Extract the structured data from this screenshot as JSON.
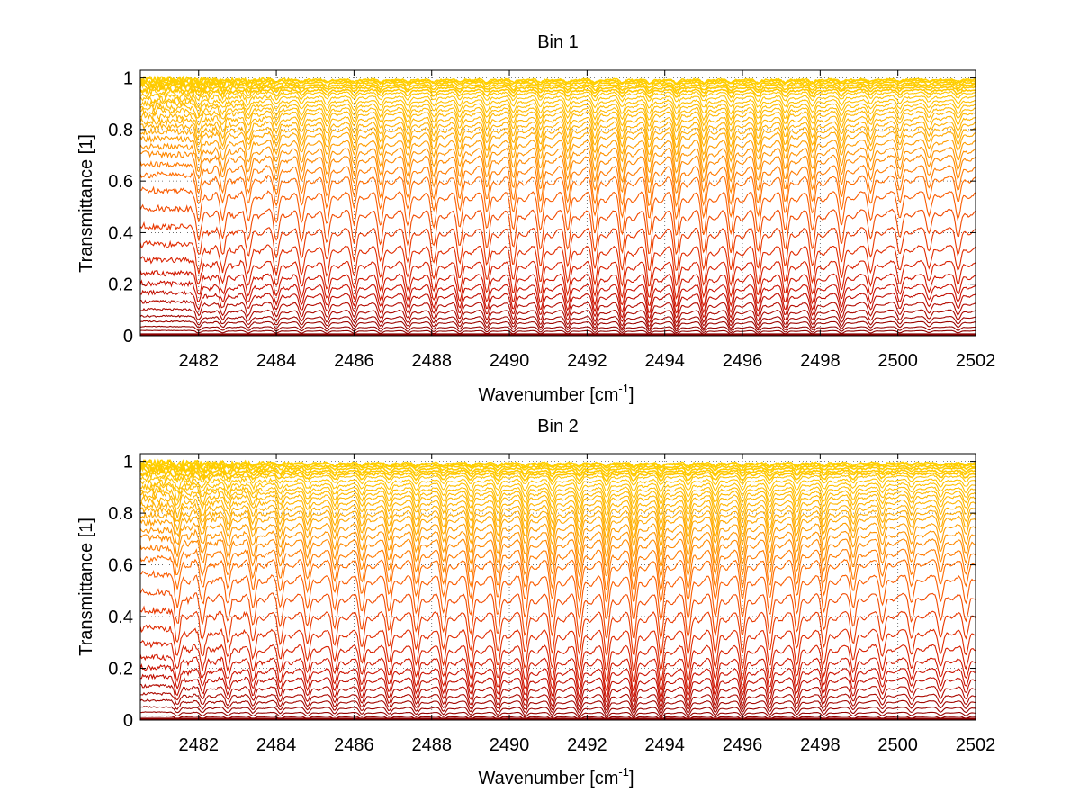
{
  "chart_data": [
    {
      "type": "line",
      "title": "Bin 1",
      "xlabel": "Wavenumber [cm",
      "xlabel_superscript": "-1",
      "xlabel_suffix": "]",
      "ylabel": "Transmittance [1]",
      "xlim": [
        2480.5,
        2502
      ],
      "ylim": [
        0,
        1.03
      ],
      "xticks": [
        2482,
        2484,
        2486,
        2488,
        2490,
        2492,
        2494,
        2496,
        2498,
        2500,
        2502
      ],
      "xtick_labels": [
        "2482",
        "2484",
        "2486",
        "2488",
        "2490",
        "2492",
        "2494",
        "2496",
        "2498",
        "2500",
        "2502"
      ],
      "yticks": [
        0,
        0.2,
        0.4,
        0.6,
        0.8,
        1
      ],
      "ytick_labels": [
        "0",
        "0.2",
        "0.4",
        "0.6",
        "0.8",
        "1"
      ],
      "grid": true,
      "grid_style": "dotted",
      "legend": "none",
      "colormap": [
        "#8b0000",
        "#cc1100",
        "#e63300",
        "#ff6600",
        "#ffaa00",
        "#ffd000"
      ],
      "series_baselines": [
        0.005,
        0.02,
        0.035,
        0.055,
        0.075,
        0.1,
        0.13,
        0.165,
        0.2,
        0.24,
        0.29,
        0.35,
        0.42,
        0.49,
        0.56,
        0.62,
        0.66,
        0.7,
        0.73,
        0.76,
        0.79,
        0.81,
        0.83,
        0.85,
        0.87,
        0.885,
        0.9,
        0.915,
        0.93,
        0.945,
        0.955,
        0.965,
        0.975,
        0.983,
        0.99,
        0.995
      ],
      "lines": [
        {
          "x": 2482.0,
          "strength": 0.85,
          "width": 0.09
        },
        {
          "x": 2482.62,
          "strength": 0.8,
          "width": 0.09
        },
        {
          "x": 2483.28,
          "strength": 0.85,
          "width": 0.09
        },
        {
          "x": 2484.0,
          "strength": 0.9,
          "width": 0.09
        },
        {
          "x": 2484.65,
          "strength": 0.9,
          "width": 0.09
        },
        {
          "x": 2485.3,
          "strength": 0.95,
          "width": 0.09
        },
        {
          "x": 2486.0,
          "strength": 0.95,
          "width": 0.09
        },
        {
          "x": 2486.68,
          "strength": 1.0,
          "width": 0.09
        },
        {
          "x": 2487.38,
          "strength": 1.0,
          "width": 0.09
        },
        {
          "x": 2488.05,
          "strength": 1.05,
          "width": 0.09
        },
        {
          "x": 2488.72,
          "strength": 1.05,
          "width": 0.09
        },
        {
          "x": 2489.42,
          "strength": 1.1,
          "width": 0.09
        },
        {
          "x": 2490.1,
          "strength": 1.1,
          "width": 0.09
        },
        {
          "x": 2490.8,
          "strength": 1.15,
          "width": 0.09
        },
        {
          "x": 2491.5,
          "strength": 1.15,
          "width": 0.09
        },
        {
          "x": 2492.2,
          "strength": 1.2,
          "width": 0.09
        },
        {
          "x": 2492.9,
          "strength": 1.25,
          "width": 0.09
        },
        {
          "x": 2493.6,
          "strength": 1.3,
          "width": 0.09
        },
        {
          "x": 2494.3,
          "strength": 1.3,
          "width": 0.09
        },
        {
          "x": 2495.0,
          "strength": 1.25,
          "width": 0.09
        },
        {
          "x": 2495.7,
          "strength": 1.25,
          "width": 0.09
        },
        {
          "x": 2496.4,
          "strength": 1.2,
          "width": 0.09
        },
        {
          "x": 2497.1,
          "strength": 1.15,
          "width": 0.09
        },
        {
          "x": 2497.8,
          "strength": 1.15,
          "width": 0.09
        },
        {
          "x": 2498.55,
          "strength": 1.0,
          "width": 0.09
        },
        {
          "x": 2499.3,
          "strength": 0.85,
          "width": 0.09
        },
        {
          "x": 2500.05,
          "strength": 0.8,
          "width": 0.09
        },
        {
          "x": 2500.8,
          "strength": 0.7,
          "width": 0.09
        },
        {
          "x": 2501.55,
          "strength": 0.8,
          "width": 0.09
        }
      ]
    },
    {
      "type": "line",
      "title": "Bin 2",
      "xlabel": "Wavenumber [cm",
      "xlabel_superscript": "-1",
      "xlabel_suffix": "]",
      "ylabel": "Transmittance [1]",
      "xlim": [
        2480.5,
        2502
      ],
      "ylim": [
        0,
        1.03
      ],
      "xticks": [
        2482,
        2484,
        2486,
        2488,
        2490,
        2492,
        2494,
        2496,
        2498,
        2500,
        2502
      ],
      "xtick_labels": [
        "2482",
        "2484",
        "2486",
        "2488",
        "2490",
        "2492",
        "2494",
        "2496",
        "2498",
        "2500",
        "2502"
      ],
      "yticks": [
        0,
        0.2,
        0.4,
        0.6,
        0.8,
        1
      ],
      "ytick_labels": [
        "0",
        "0.2",
        "0.4",
        "0.6",
        "0.8",
        "1"
      ],
      "grid": true,
      "grid_style": "dotted",
      "legend": "none",
      "colormap": [
        "#8b0000",
        "#cc1100",
        "#e63300",
        "#ff6600",
        "#ffaa00",
        "#ffd000"
      ],
      "series_baselines": [
        0.005,
        0.015,
        0.03,
        0.05,
        0.075,
        0.1,
        0.13,
        0.165,
        0.2,
        0.24,
        0.29,
        0.35,
        0.42,
        0.49,
        0.56,
        0.62,
        0.66,
        0.7,
        0.73,
        0.76,
        0.79,
        0.81,
        0.83,
        0.85,
        0.87,
        0.885,
        0.9,
        0.915,
        0.93,
        0.945,
        0.955,
        0.965,
        0.975,
        0.983,
        0.99,
        0.995
      ],
      "lines": [
        {
          "x": 2481.45,
          "strength": 0.9,
          "width": 0.09
        },
        {
          "x": 2482.1,
          "strength": 0.85,
          "width": 0.09
        },
        {
          "x": 2482.75,
          "strength": 0.85,
          "width": 0.09
        },
        {
          "x": 2483.4,
          "strength": 0.9,
          "width": 0.09
        },
        {
          "x": 2484.1,
          "strength": 0.95,
          "width": 0.09
        },
        {
          "x": 2484.8,
          "strength": 0.95,
          "width": 0.09
        },
        {
          "x": 2485.5,
          "strength": 1.0,
          "width": 0.09
        },
        {
          "x": 2486.2,
          "strength": 1.05,
          "width": 0.09
        },
        {
          "x": 2486.9,
          "strength": 1.05,
          "width": 0.09
        },
        {
          "x": 2487.6,
          "strength": 1.1,
          "width": 0.09
        },
        {
          "x": 2488.3,
          "strength": 1.1,
          "width": 0.09
        },
        {
          "x": 2489.0,
          "strength": 1.15,
          "width": 0.09
        },
        {
          "x": 2489.7,
          "strength": 1.15,
          "width": 0.09
        },
        {
          "x": 2490.4,
          "strength": 1.2,
          "width": 0.09
        },
        {
          "x": 2491.1,
          "strength": 1.2,
          "width": 0.09
        },
        {
          "x": 2491.8,
          "strength": 1.25,
          "width": 0.09
        },
        {
          "x": 2492.5,
          "strength": 1.3,
          "width": 0.09
        },
        {
          "x": 2493.2,
          "strength": 1.3,
          "width": 0.09
        },
        {
          "x": 2493.9,
          "strength": 1.3,
          "width": 0.09
        },
        {
          "x": 2494.6,
          "strength": 1.25,
          "width": 0.09
        },
        {
          "x": 2495.3,
          "strength": 1.2,
          "width": 0.09
        },
        {
          "x": 2496.0,
          "strength": 1.2,
          "width": 0.09
        },
        {
          "x": 2496.7,
          "strength": 1.15,
          "width": 0.09
        },
        {
          "x": 2497.4,
          "strength": 1.1,
          "width": 0.09
        },
        {
          "x": 2498.1,
          "strength": 1.05,
          "width": 0.09
        },
        {
          "x": 2498.85,
          "strength": 0.95,
          "width": 0.09
        },
        {
          "x": 2499.6,
          "strength": 0.85,
          "width": 0.09
        },
        {
          "x": 2500.35,
          "strength": 0.8,
          "width": 0.09
        },
        {
          "x": 2501.1,
          "strength": 0.75,
          "width": 0.09
        },
        {
          "x": 2501.75,
          "strength": 0.8,
          "width": 0.09
        }
      ]
    }
  ]
}
